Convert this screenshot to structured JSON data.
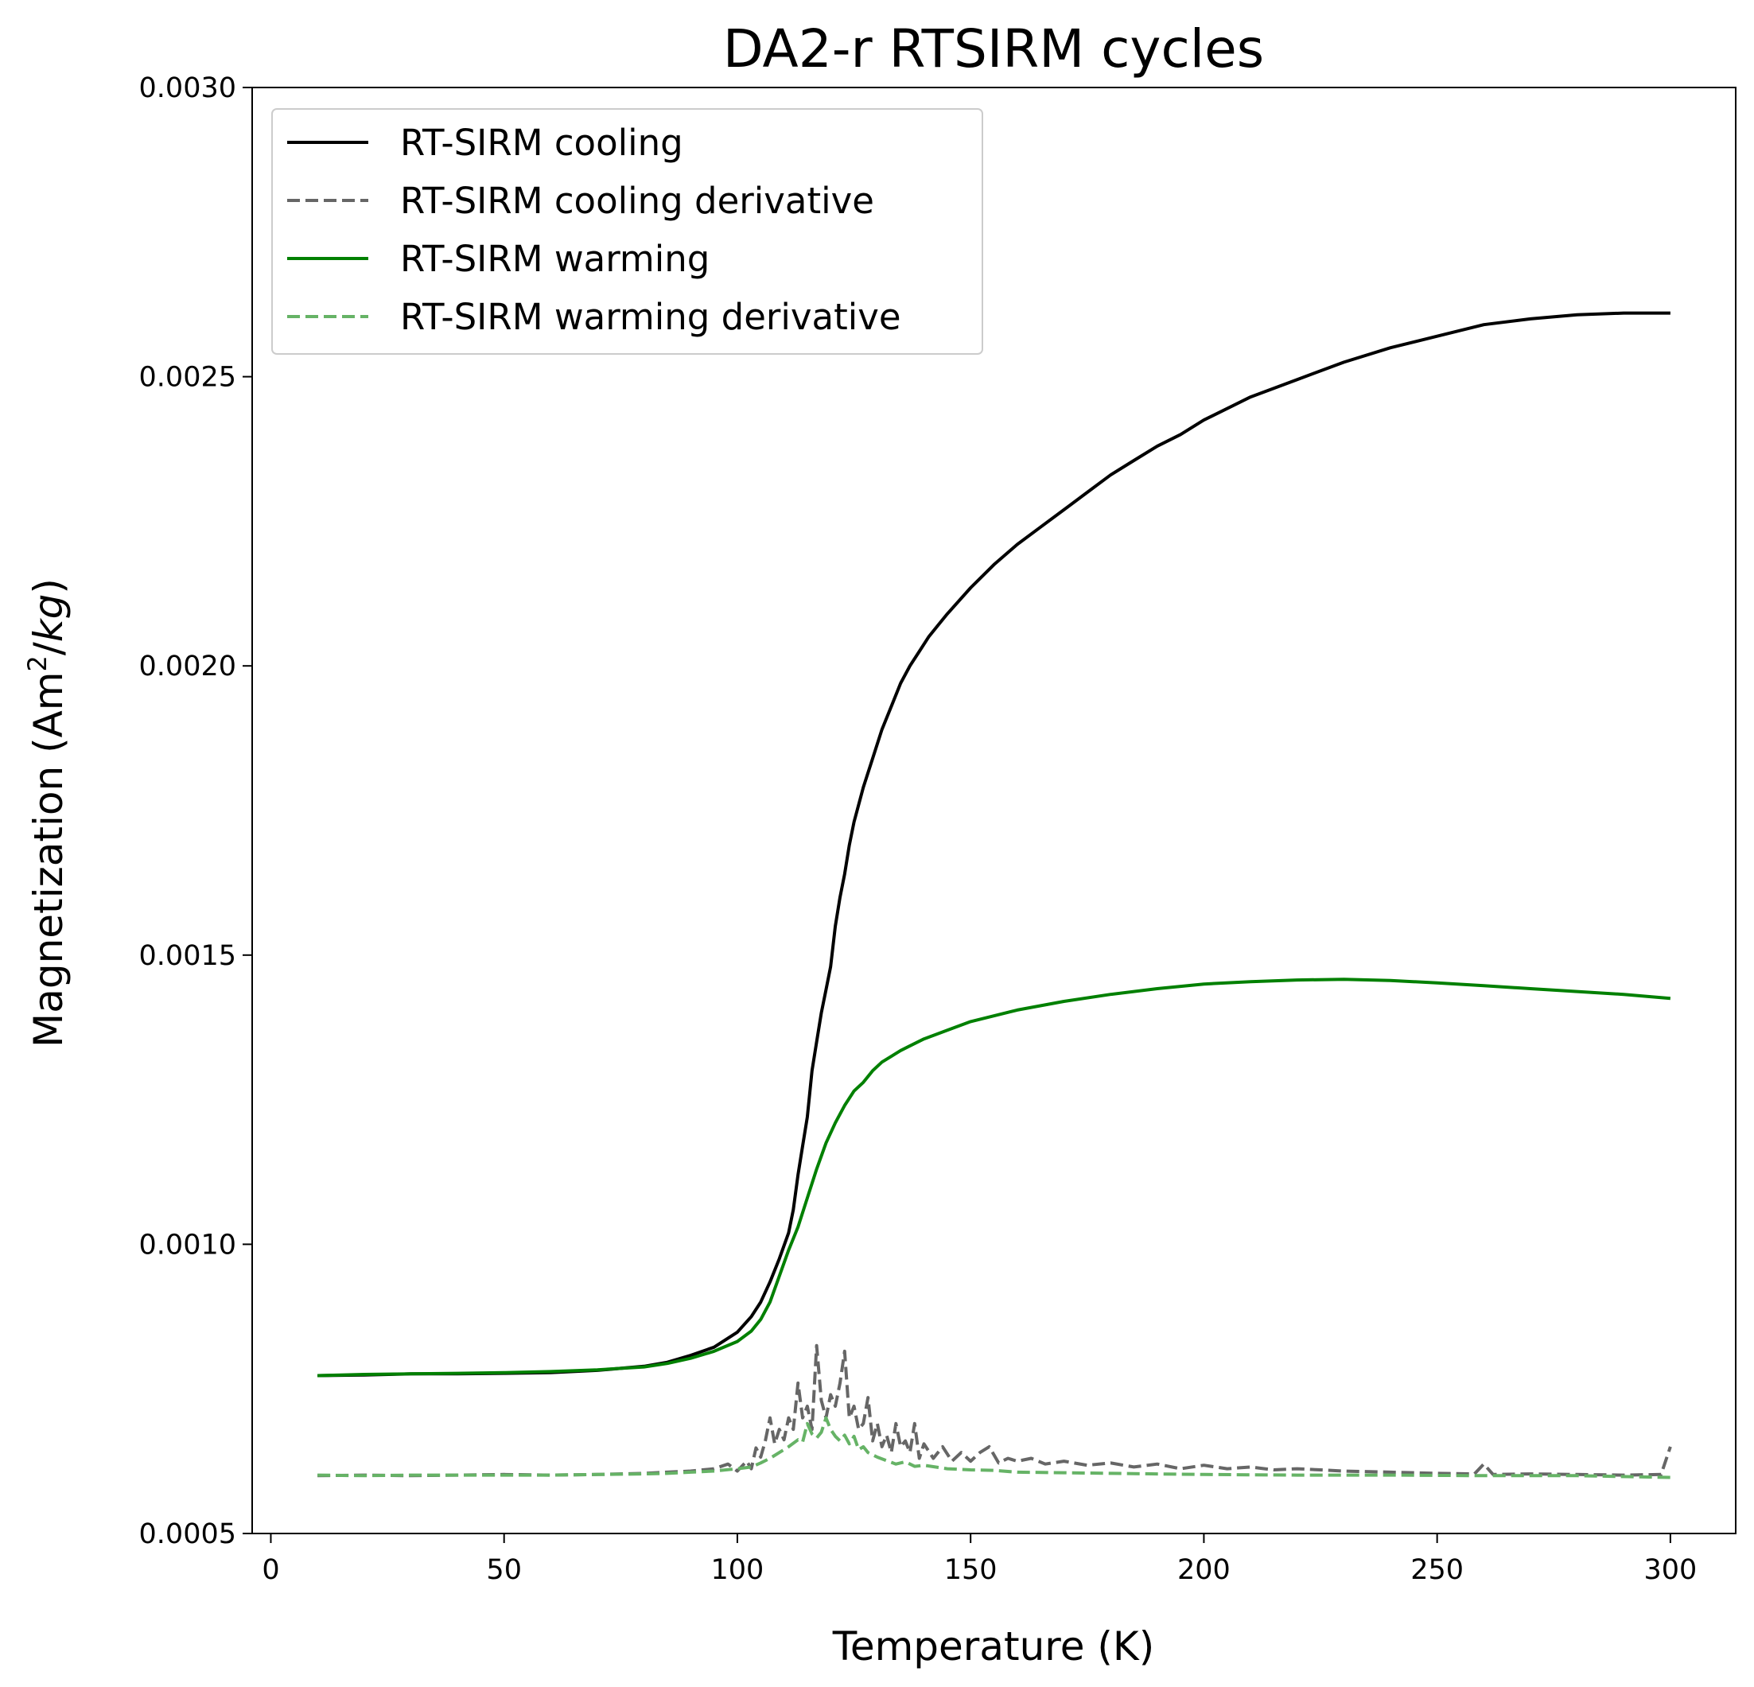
{
  "chart_data": {
    "type": "line",
    "title": "DA2-r RTSIRM cycles",
    "xlabel": "Temperature (K)",
    "ylabel": "Magnetization (Am²/kg)",
    "ylabel_parts": {
      "prefix": "Magnetization (Am",
      "sup": "2",
      "slash": "/",
      "kg": "kg",
      "suffix": ")"
    },
    "xlim": [
      -4,
      314
    ],
    "ylim": [
      0.0005,
      0.003
    ],
    "xticks": [
      0,
      50,
      100,
      150,
      200,
      250,
      300
    ],
    "xtick_labels": [
      "0",
      "50",
      "100",
      "150",
      "200",
      "250",
      "300"
    ],
    "yticks": [
      0.0005,
      0.001,
      0.0015,
      0.002,
      0.0025,
      0.003
    ],
    "ytick_labels": [
      "0.0005",
      "0.0010",
      "0.0015",
      "0.0020",
      "0.0025",
      "0.0030"
    ],
    "grid": false,
    "legend_position": "upper-left",
    "series": [
      {
        "name": "RT-SIRM cooling",
        "color": "#000000",
        "dash": "solid",
        "x": [
          10,
          20,
          30,
          40,
          50,
          60,
          70,
          80,
          85,
          90,
          95,
          100,
          103,
          105,
          107,
          109,
          111,
          112,
          113,
          114,
          115,
          116,
          117,
          118,
          119,
          120,
          121,
          122,
          123,
          124,
          125,
          127,
          129,
          131,
          133,
          135,
          137,
          139,
          141,
          143,
          145,
          150,
          155,
          160,
          165,
          170,
          175,
          180,
          185,
          190,
          195,
          200,
          210,
          220,
          230,
          240,
          250,
          260,
          270,
          280,
          290,
          300
        ],
        "y": [
          0.000773,
          0.000774,
          0.000776,
          0.000776,
          0.000777,
          0.000778,
          0.000782,
          0.000789,
          0.000796,
          0.000808,
          0.000822,
          0.000848,
          0.000875,
          0.0009,
          0.000935,
          0.000975,
          0.00102,
          0.00106,
          0.00112,
          0.00117,
          0.00122,
          0.0013,
          0.00135,
          0.0014,
          0.00144,
          0.00148,
          0.00155,
          0.0016,
          0.00164,
          0.00169,
          0.00173,
          0.00179,
          0.00184,
          0.00189,
          0.00193,
          0.00197,
          0.002,
          0.002025,
          0.00205,
          0.00207,
          0.00209,
          0.002135,
          0.002175,
          0.00221,
          0.00224,
          0.00227,
          0.0023,
          0.00233,
          0.002355,
          0.00238,
          0.0024,
          0.002425,
          0.002465,
          0.002495,
          0.002525,
          0.00255,
          0.00257,
          0.00259,
          0.0026,
          0.002607,
          0.00261,
          0.00261
        ]
      },
      {
        "name": "RT-SIRM cooling derivative",
        "color": "#666666",
        "dash": "dashed",
        "x": [
          10,
          20,
          30,
          40,
          50,
          60,
          70,
          80,
          85,
          90,
          95,
          98,
          100,
          102,
          103,
          104,
          105,
          106,
          107,
          108,
          109,
          110,
          111,
          112,
          113,
          114,
          115,
          116,
          117,
          118,
          119,
          120,
          121,
          122,
          123,
          124,
          125,
          126,
          127,
          128,
          129,
          130,
          131,
          132,
          133,
          134,
          135,
          136,
          137,
          138,
          139,
          140,
          142,
          144,
          146,
          148,
          150,
          152,
          154,
          156,
          158,
          160,
          163,
          166,
          170,
          175,
          180,
          185,
          190,
          195,
          200,
          205,
          210,
          215,
          220,
          230,
          240,
          250,
          258,
          260,
          262,
          270,
          280,
          290,
          298,
          300
        ],
        "y": [
          0.0006,
          0.000601,
          0.0006,
          0.000601,
          0.000602,
          0.000601,
          0.000602,
          0.000604,
          0.000606,
          0.000608,
          0.000612,
          0.00062,
          0.000608,
          0.000625,
          0.000612,
          0.000648,
          0.000632,
          0.00066,
          0.0007,
          0.000655,
          0.00068,
          0.000662,
          0.0007,
          0.00068,
          0.00076,
          0.0007,
          0.00072,
          0.00068,
          0.000825,
          0.00073,
          0.0007,
          0.00074,
          0.00072,
          0.00076,
          0.000815,
          0.0007,
          0.00072,
          0.00068,
          0.00069,
          0.000735,
          0.00066,
          0.00069,
          0.00065,
          0.00067,
          0.00064,
          0.00069,
          0.00065,
          0.00066,
          0.00064,
          0.00069,
          0.00063,
          0.000655,
          0.00063,
          0.00065,
          0.000625,
          0.00064,
          0.000625,
          0.00064,
          0.00065,
          0.000622,
          0.00063,
          0.000625,
          0.00063,
          0.00062,
          0.000625,
          0.000618,
          0.000622,
          0.000615,
          0.00062,
          0.000612,
          0.000618,
          0.000612,
          0.000615,
          0.00061,
          0.000612,
          0.000608,
          0.000606,
          0.000604,
          0.000603,
          0.00062,
          0.000602,
          0.000603,
          0.000602,
          0.000601,
          0.000602,
          0.00065
        ]
      },
      {
        "name": "RT-SIRM warming",
        "color": "#008000",
        "dash": "solid",
        "x": [
          10,
          20,
          30,
          40,
          50,
          60,
          70,
          80,
          85,
          90,
          95,
          100,
          103,
          105,
          107,
          109,
          111,
          113,
          115,
          117,
          119,
          121,
          123,
          125,
          127,
          129,
          131,
          133,
          135,
          140,
          145,
          150,
          160,
          170,
          180,
          190,
          200,
          210,
          220,
          230,
          240,
          250,
          260,
          270,
          280,
          290,
          300
        ],
        "y": [
          0.000773,
          0.000775,
          0.000776,
          0.000777,
          0.000778,
          0.00078,
          0.000783,
          0.000788,
          0.000794,
          0.000803,
          0.000815,
          0.000832,
          0.00085,
          0.00087,
          0.0009,
          0.000945,
          0.00099,
          0.00103,
          0.00108,
          0.00113,
          0.001175,
          0.00121,
          0.00124,
          0.001265,
          0.00128,
          0.0013,
          0.001315,
          0.001325,
          0.001335,
          0.001355,
          0.00137,
          0.001385,
          0.001405,
          0.00142,
          0.001432,
          0.001442,
          0.00145,
          0.001454,
          0.001457,
          0.001458,
          0.001456,
          0.001452,
          0.001447,
          0.001442,
          0.001437,
          0.001432,
          0.001425
        ]
      },
      {
        "name": "RT-SIRM warming derivative",
        "color": "#66b366",
        "dash": "dashed",
        "x": [
          10,
          20,
          30,
          40,
          50,
          60,
          70,
          80,
          85,
          90,
          95,
          100,
          103,
          105,
          107,
          109,
          111,
          113,
          114,
          115,
          116,
          117,
          118,
          119,
          120,
          121,
          122,
          123,
          124,
          125,
          126,
          127,
          128,
          130,
          132,
          134,
          136,
          138,
          140,
          145,
          150,
          155,
          160,
          170,
          180,
          190,
          200,
          220,
          240,
          260,
          280,
          300
        ],
        "y": [
          0.000601,
          0.0006,
          0.000601,
          0.000601,
          0.000601,
          0.000601,
          0.000602,
          0.000603,
          0.000604,
          0.000606,
          0.000608,
          0.000612,
          0.000615,
          0.000622,
          0.00063,
          0.00064,
          0.00065,
          0.000662,
          0.000658,
          0.00069,
          0.000672,
          0.000665,
          0.000675,
          0.0007,
          0.00068,
          0.000668,
          0.00066,
          0.00067,
          0.000655,
          0.000668,
          0.000645,
          0.00065,
          0.00064,
          0.000632,
          0.000626,
          0.00062,
          0.000624,
          0.000616,
          0.000618,
          0.000612,
          0.00061,
          0.000609,
          0.000606,
          0.000605,
          0.000604,
          0.000603,
          0.000602,
          0.000601,
          0.000601,
          0.0006,
          0.0006,
          0.000597
        ]
      }
    ]
  }
}
